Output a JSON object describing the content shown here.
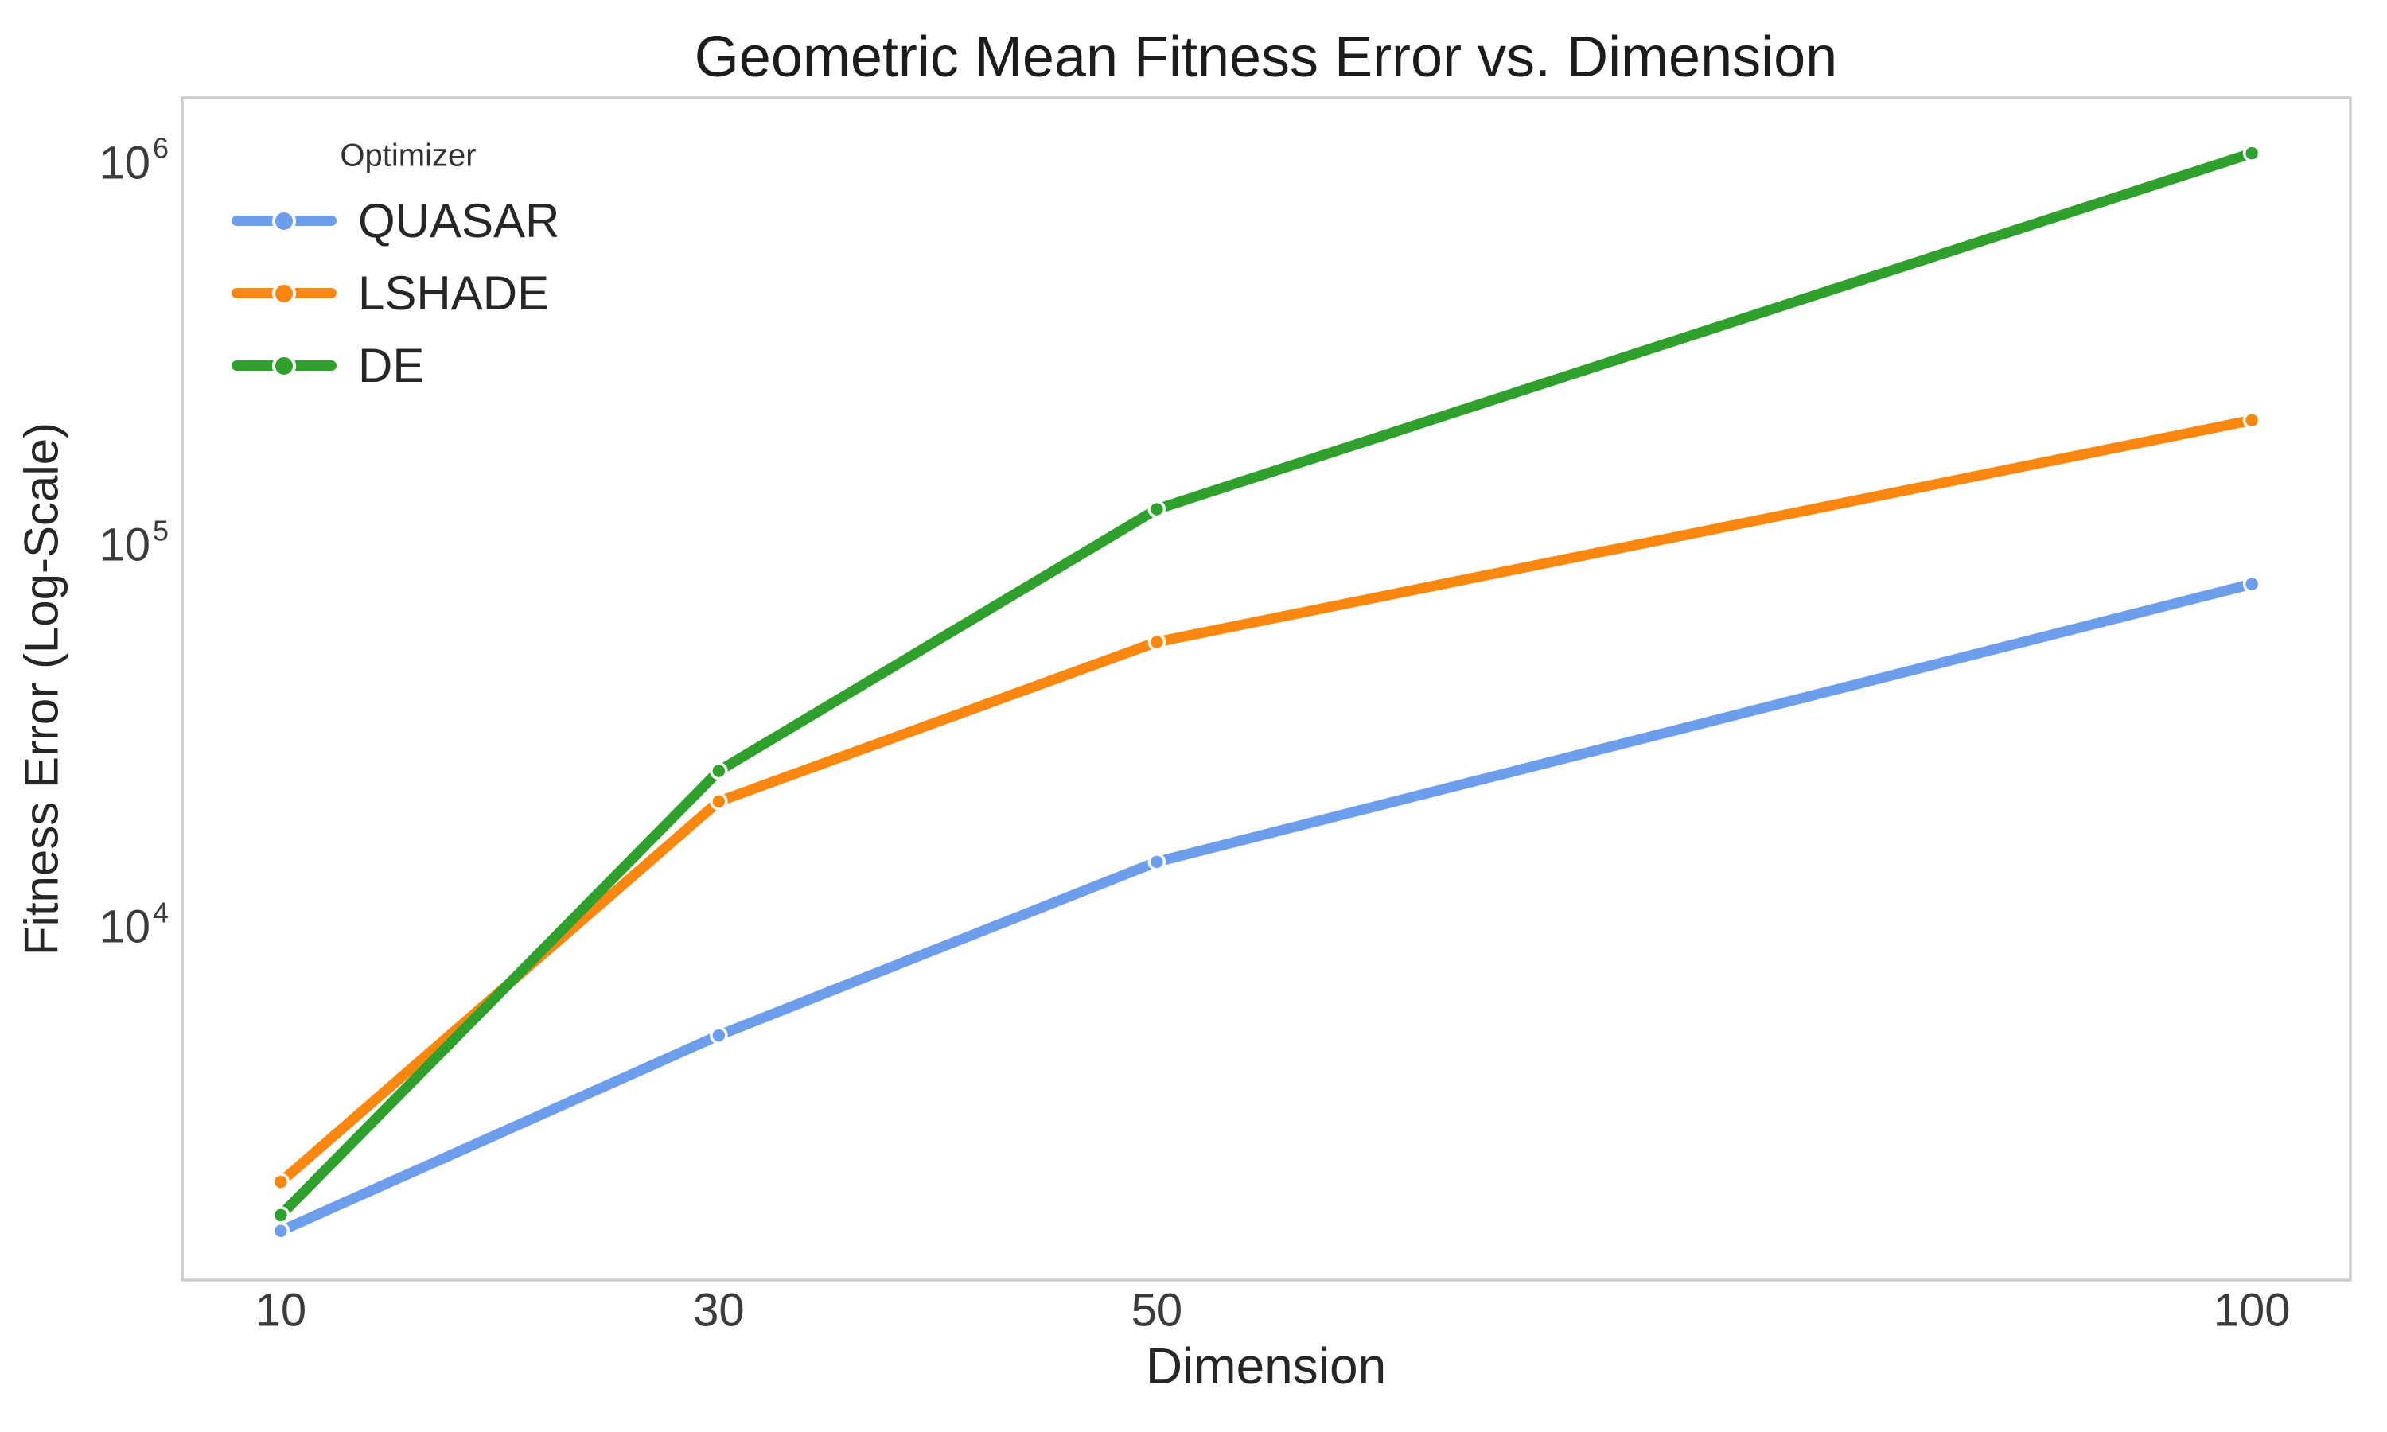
{
  "figure": {
    "title": "Geometric Mean Fitness Error vs. Dimension",
    "xlabel": "Dimension",
    "ylabel": "Fitness Error (Log-Scale)"
  },
  "legend": {
    "title": "Optimizer",
    "entries": [
      {
        "label": "QUASAR",
        "color": "#6D9EEB"
      },
      {
        "label": "LSHADE",
        "color": "#FA870F"
      },
      {
        "label": "DE",
        "color": "#2FA02C"
      }
    ]
  },
  "chart_data": {
    "type": "line",
    "title": "Geometric Mean Fitness Error vs. Dimension",
    "xlabel": "Dimension",
    "ylabel": "Fitness Error (Log-Scale)",
    "yscale": "log",
    "grid": false,
    "legend_position": "upper left",
    "x": [
      10,
      30,
      50,
      100
    ],
    "x_tick_labels": [
      "10",
      "30",
      "50",
      "100"
    ],
    "y_ticks": [
      {
        "base": "10",
        "exp": "6",
        "value": 1000000
      },
      {
        "base": "10",
        "exp": "5",
        "value": 100000
      },
      {
        "base": "10",
        "exp": "4",
        "value": 10000
      }
    ],
    "xlim": [
      5.5,
      104.5
    ],
    "ylim": [
      1190,
      1480000
    ],
    "series": [
      {
        "name": "QUASAR",
        "color": "#6D9EEB",
        "values": [
          1600,
          5200,
          14800,
          79000
        ]
      },
      {
        "name": "LSHADE",
        "color": "#FA870F",
        "values": [
          2150,
          21300,
          55700,
          212000
        ]
      },
      {
        "name": "DE",
        "color": "#2FA02C",
        "values": [
          1760,
          25600,
          124000,
          1060000
        ]
      }
    ]
  }
}
